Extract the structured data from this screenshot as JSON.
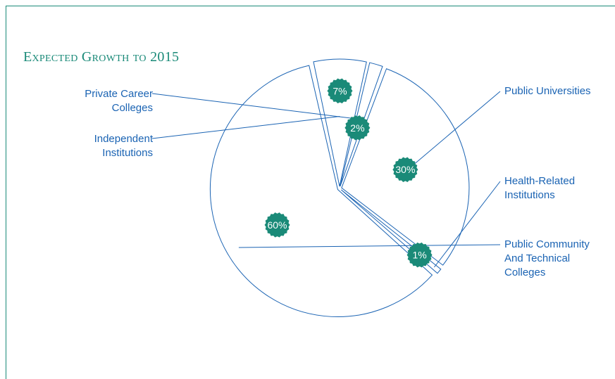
{
  "chart_data": {
    "type": "pie",
    "title": "Expected Growth to 2015",
    "slices": [
      {
        "label": "Public Universities",
        "value": 30,
        "data_label": "30%"
      },
      {
        "label": "Health-Related Institutions",
        "value": 1,
        "data_label": "1%"
      },
      {
        "label": "Public Community And Technical Colleges",
        "value": 60,
        "data_label": "60%"
      },
      {
        "label": "Independent Institutions",
        "value": 7,
        "data_label": "7%"
      },
      {
        "label": "Private Career Colleges",
        "value": 2,
        "data_label": "2%"
      }
    ],
    "legend": "none",
    "colors": {
      "outline": "#1a63b3",
      "badge": "#1a8a78",
      "title": "#1a8a78"
    }
  }
}
